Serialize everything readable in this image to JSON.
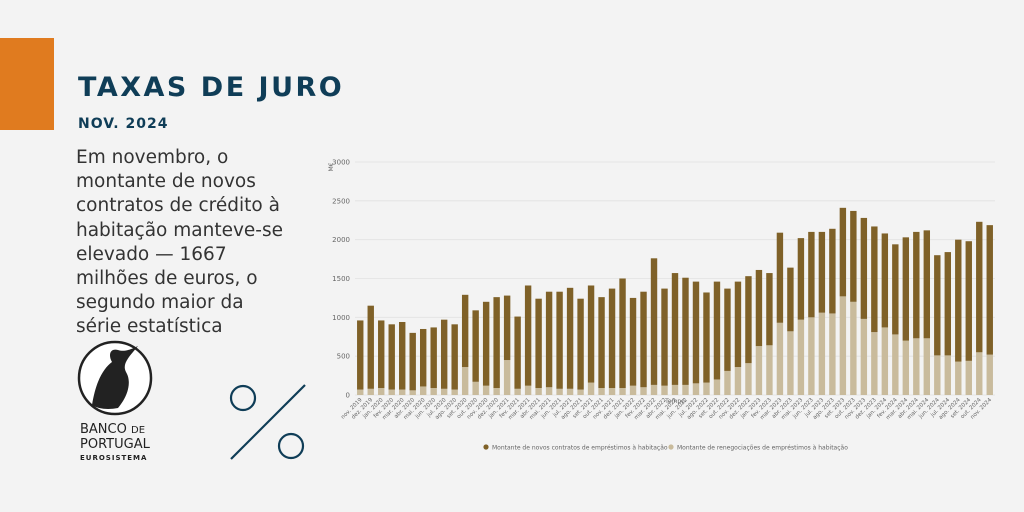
{
  "header": {
    "title": "TAXAS DE JURO",
    "date": "NOV. 2024",
    "text_lines": [
      "Em novembro, o",
      "montante de novos",
      "contratos de crédito à",
      "habitação manteve-se",
      "elevado — 1667",
      "milhões de euros, o",
      "segundo maior da",
      "série estatística"
    ]
  },
  "logo": {
    "line1": "BANCO",
    "line1b": "DE",
    "line2": "PORTUGAL",
    "line3": "EUROSISTEMA"
  },
  "chart_data": {
    "type": "stacked_bar",
    "y_label": "M€",
    "x_label": "Tempo",
    "categories": [
      "nov. 2019",
      "dez. 2019",
      "jan. 2020",
      "fev. 2020",
      "mar. 2020",
      "abr. 2020",
      "mai. 2020",
      "jun. 2020",
      "jul. 2020",
      "ago. 2020",
      "set. 2020",
      "out. 2020",
      "nov. 2020",
      "dez. 2020",
      "jan. 2021",
      "fev. 2021",
      "mar. 2021",
      "abr. 2021",
      "mai. 2021",
      "jun. 2021",
      "jul. 2021",
      "ago. 2021",
      "set. 2021",
      "out. 2021",
      "nov. 2021",
      "dez. 2021",
      "jan. 2022",
      "fev. 2022",
      "mar. 2022",
      "abr. 2022",
      "mai. 2022",
      "jun. 2022",
      "jul. 2022",
      "ago. 2022",
      "set. 2022",
      "out. 2022",
      "nov. 2022",
      "dez. 2022",
      "jan. 2023",
      "fev. 2023",
      "mar. 2023",
      "abr. 2023",
      "mai. 2023",
      "jun. 2023",
      "jul. 2023",
      "ago. 2023",
      "set. 2023",
      "out. 2023",
      "nov. 2023",
      "dez. 2023",
      "jan. 2024",
      "fev. 2024",
      "mar. 2024",
      "abr. 2024",
      "mai. 2024",
      "jun. 2024",
      "jul. 2024",
      "ago. 2024",
      "set. 2024",
      "out. 2024",
      "nov. 2024"
    ],
    "series": [
      {
        "name": "Montante de renegociações de empréstimos à habitação",
        "color": "#c9bb9c",
        "values": [
          70,
          80,
          90,
          70,
          70,
          60,
          110,
          90,
          80,
          70,
          360,
          170,
          120,
          90,
          450,
          80,
          120,
          90,
          100,
          80,
          80,
          70,
          160,
          90,
          90,
          90,
          120,
          100,
          130,
          120,
          130,
          130,
          150,
          160,
          200,
          310,
          360,
          410,
          630,
          640,
          930,
          820,
          970,
          1000,
          1060,
          1050,
          1270,
          1200,
          980,
          810,
          870,
          780,
          700,
          730,
          730,
          510,
          510,
          430,
          440,
          550,
          520
        ]
      },
      {
        "name": "Montante de novos contratos de empréstimos à habitação",
        "color": "#7f6128",
        "values": [
          890,
          1070,
          870,
          840,
          870,
          740,
          740,
          780,
          890,
          840,
          930,
          920,
          1080,
          1170,
          830,
          930,
          1290,
          1150,
          1230,
          1250,
          1300,
          1170,
          1250,
          1170,
          1280,
          1410,
          1130,
          1230,
          1630,
          1250,
          1440,
          1380,
          1310,
          1160,
          1260,
          1060,
          1100,
          1120,
          980,
          930,
          1160,
          820,
          1050,
          1100,
          1040,
          1090,
          1140,
          1170,
          1300,
          1360,
          1210,
          1160,
          1330,
          1370,
          1390,
          1290,
          1330,
          1570,
          1540,
          1680,
          1667
        ]
      }
    ],
    "legend_order": [
      1,
      0
    ],
    "ylim": [
      0,
      3000
    ],
    "yticks": [
      0,
      500,
      1000,
      1500,
      2000,
      2500,
      3000
    ],
    "grid": true
  }
}
